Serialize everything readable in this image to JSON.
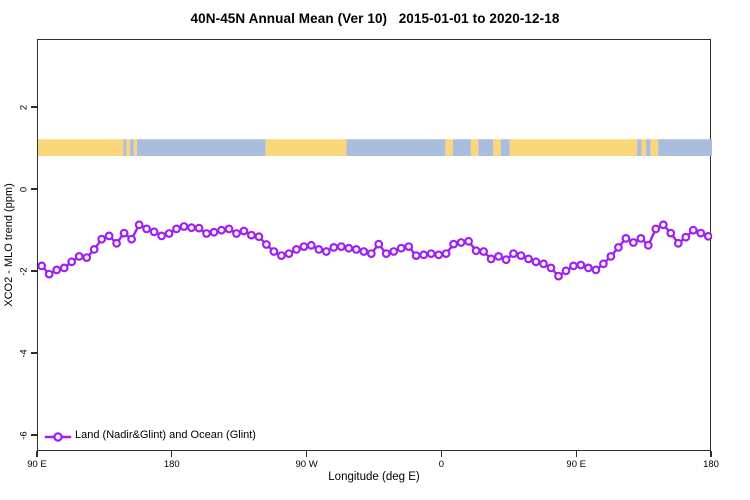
{
  "title": "40N-45N Annual Mean (Ver 10)   2015-01-01 to 2020-12-18",
  "chart_data": {
    "type": "line",
    "title": "40N-45N Annual Mean (Ver 10)   2015-01-01 to 2020-12-18",
    "xlabel": "Longitude (deg E)",
    "ylabel": "XCO2 - MLO trend (ppm)",
    "grid": false,
    "x_axis": {
      "tick_labels": [
        "90 E",
        "180",
        "90 W",
        "0",
        "90 E",
        "180"
      ],
      "tick_offsets_deg": [
        0,
        90,
        180,
        270,
        360,
        450
      ],
      "span_deg": 450,
      "note": "longitude axis starts at 90E and wraps eastward 450 degrees to 180"
    },
    "y_axis": {
      "tick_values": [
        2,
        0,
        -2,
        -4,
        -6
      ],
      "tick_labels": [
        "2",
        "0",
        "-2",
        "-4",
        "-6"
      ],
      "range": [
        -6.4,
        3.6
      ]
    },
    "legend": {
      "label": "Land (Nadir&Glint) and Ocean (Glint)",
      "position": "bottom-left"
    },
    "map_strip": {
      "y_top": 1.24,
      "y_bottom": 0.83,
      "land_color": "#FBD77C",
      "ocean_color": "#A9BEDC",
      "segments_deg": [
        [
          0,
          57,
          "land"
        ],
        [
          57,
          59,
          "ocean"
        ],
        [
          59,
          61.5,
          "land"
        ],
        [
          61.5,
          64,
          "ocean"
        ],
        [
          64,
          66,
          "land"
        ],
        [
          66,
          152,
          "ocean"
        ],
        [
          152,
          206,
          "land"
        ],
        [
          206,
          272,
          "ocean"
        ],
        [
          272,
          277,
          "land"
        ],
        [
          277,
          289,
          "ocean"
        ],
        [
          289,
          294,
          "land"
        ],
        [
          294,
          304,
          "ocean"
        ],
        [
          304,
          309,
          "land"
        ],
        [
          309,
          315,
          "ocean"
        ],
        [
          315,
          400,
          "land"
        ],
        [
          400,
          403,
          "ocean"
        ],
        [
          403,
          406,
          "land"
        ],
        [
          406,
          409,
          "ocean"
        ],
        [
          409,
          414,
          "land"
        ],
        [
          414,
          450,
          "ocean"
        ]
      ]
    },
    "series": [
      {
        "name": "Land (Nadir&Glint) and Ocean (Glint)",
        "color": "#A020F0",
        "marker": "open-circle",
        "x_start_offset_deg": 2.5,
        "x_step_deg": 5,
        "values": [
          -1.85,
          -2.05,
          -1.95,
          -1.9,
          -1.75,
          -1.62,
          -1.65,
          -1.45,
          -1.2,
          -1.12,
          -1.3,
          -1.05,
          -1.2,
          -0.85,
          -0.95,
          -1.02,
          -1.12,
          -1.06,
          -0.95,
          -0.89,
          -0.92,
          -0.93,
          -1.06,
          -1.03,
          -0.98,
          -0.95,
          -1.06,
          -1.0,
          -1.1,
          -1.14,
          -1.33,
          -1.5,
          -1.6,
          -1.55,
          -1.45,
          -1.38,
          -1.35,
          -1.45,
          -1.5,
          -1.4,
          -1.38,
          -1.42,
          -1.45,
          -1.5,
          -1.55,
          -1.32,
          -1.55,
          -1.5,
          -1.42,
          -1.38,
          -1.6,
          -1.58,
          -1.55,
          -1.58,
          -1.55,
          -1.32,
          -1.28,
          -1.25,
          -1.48,
          -1.5,
          -1.68,
          -1.62,
          -1.7,
          -1.55,
          -1.6,
          -1.68,
          -1.75,
          -1.8,
          -1.9,
          -2.1,
          -1.97,
          -1.85,
          -1.83,
          -1.9,
          -1.95,
          -1.8,
          -1.62,
          -1.4,
          -1.18,
          -1.28,
          -1.18,
          -1.35,
          -0.95,
          -0.85,
          -1.05,
          -1.3,
          -1.15,
          -0.98,
          -1.05,
          -1.13
        ]
      }
    ]
  }
}
